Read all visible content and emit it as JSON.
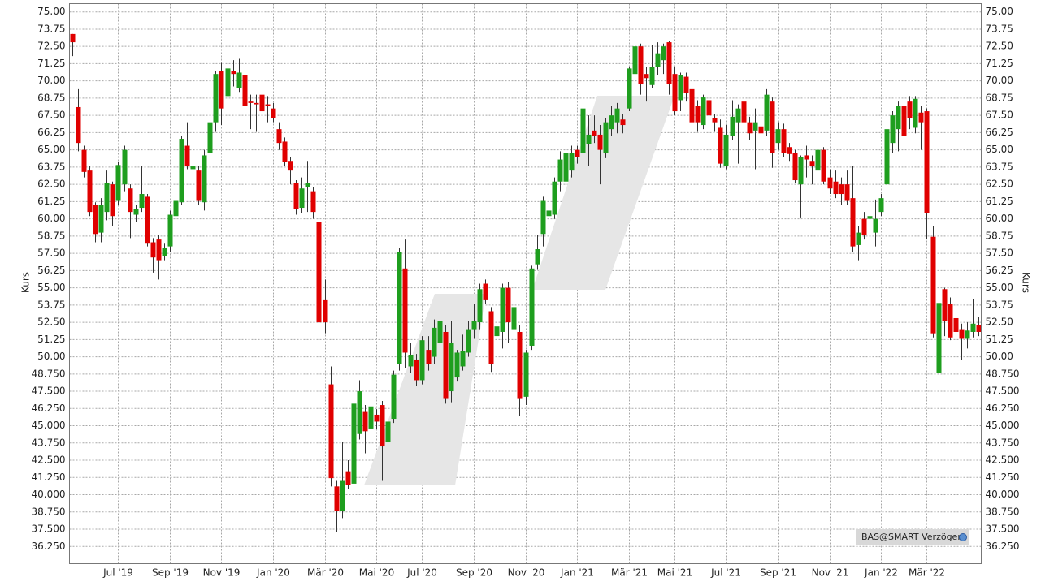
{
  "chart_data": {
    "type": "candlestick",
    "y_label": "Kurs",
    "source": "BAS@SMART Verzögert",
    "up_color": "#1e9e1e",
    "down_color": "#e00000",
    "grid": true,
    "ylim": [
      35.0,
      75.6
    ],
    "yticks": [
      {
        "value": 75,
        "label": "75.00"
      },
      {
        "value": 73.75,
        "label": "73.75"
      },
      {
        "value": 72.5,
        "label": "72.50"
      },
      {
        "value": 71.25,
        "label": "71.25"
      },
      {
        "value": 70,
        "label": "70.00"
      },
      {
        "value": 68.75,
        "label": "68.75"
      },
      {
        "value": 67.5,
        "label": "67.50"
      },
      {
        "value": 66.25,
        "label": "66.25"
      },
      {
        "value": 65,
        "label": "65.00"
      },
      {
        "value": 63.75,
        "label": "63.75"
      },
      {
        "value": 62.5,
        "label": "62.50"
      },
      {
        "value": 61.25,
        "label": "61.25"
      },
      {
        "value": 60,
        "label": "60.00"
      },
      {
        "value": 58.75,
        "label": "58.75"
      },
      {
        "value": 57.5,
        "label": "57.50"
      },
      {
        "value": 56.25,
        "label": "56.25"
      },
      {
        "value": 55,
        "label": "55.00"
      },
      {
        "value": 53.75,
        "label": "53.75"
      },
      {
        "value": 52.5,
        "label": "52.50"
      },
      {
        "value": 51.25,
        "label": "51.25"
      },
      {
        "value": 50,
        "label": "50.00"
      },
      {
        "value": 48.75,
        "label": "48.750"
      },
      {
        "value": 47.5,
        "label": "47.500"
      },
      {
        "value": 46.25,
        "label": "46.250"
      },
      {
        "value": 45,
        "label": "45.000"
      },
      {
        "value": 43.75,
        "label": "43.750"
      },
      {
        "value": 42.5,
        "label": "42.500"
      },
      {
        "value": 41.25,
        "label": "41.250"
      },
      {
        "value": 40,
        "label": "40.000"
      },
      {
        "value": 38.75,
        "label": "38.750"
      },
      {
        "value": 37.5,
        "label": "37.500"
      },
      {
        "value": 36.25,
        "label": "36.250"
      }
    ],
    "categories": [
      null,
      null,
      null,
      null,
      null,
      null,
      null,
      null,
      "Jul '19",
      null,
      null,
      null,
      null,
      null,
      null,
      null,
      null,
      "Sep '19",
      null,
      null,
      null,
      null,
      null,
      null,
      null,
      null,
      "Nov '19",
      null,
      null,
      null,
      null,
      null,
      null,
      null,
      null,
      "Jan '20",
      null,
      null,
      null,
      null,
      null,
      null,
      null,
      null,
      "Mär '20",
      null,
      null,
      null,
      null,
      null,
      null,
      null,
      null,
      "Mai '20",
      null,
      null,
      null,
      null,
      null,
      null,
      null,
      "Jul '20",
      null,
      null,
      null,
      null,
      null,
      null,
      null,
      null,
      "Sep '20",
      null,
      null,
      null,
      null,
      null,
      null,
      null,
      null,
      "Nov '20",
      null,
      null,
      null,
      null,
      null,
      null,
      null,
      null,
      "Jan '21",
      null,
      null,
      null,
      null,
      null,
      null,
      null,
      null,
      "Mär '21",
      null,
      null,
      null,
      null,
      null,
      null,
      null,
      "Mai '21",
      null,
      null,
      null,
      null,
      null,
      null,
      null,
      null,
      "Jul '21",
      null,
      null,
      null,
      null,
      null,
      null,
      null,
      null,
      "Sep '21",
      null,
      null,
      null,
      null,
      null,
      null,
      null,
      null,
      "Nov '21",
      null,
      null,
      null,
      null,
      null,
      null,
      null,
      null,
      "Jan '22",
      null,
      null,
      null,
      null,
      null,
      null,
      null,
      "Mär '22",
      null,
      null,
      null,
      null,
      null,
      null,
      null,
      null,
      null
    ],
    "ohlc": [
      [
        73.4,
        73.4,
        71.8,
        72.8
      ],
      [
        68.1,
        69.4,
        64.9,
        65.5
      ],
      [
        65.0,
        65.3,
        63.0,
        63.4
      ],
      [
        63.5,
        63.8,
        60.2,
        60.5
      ],
      [
        61.0,
        61.2,
        58.3,
        58.9
      ],
      [
        59.0,
        61.5,
        58.3,
        61.0
      ],
      [
        60.5,
        63.5,
        59.9,
        62.6
      ],
      [
        62.5,
        62.7,
        59.5,
        60.2
      ],
      [
        61.3,
        64.1,
        61.0,
        63.9
      ],
      [
        62.5,
        65.3,
        62.0,
        65.0
      ],
      [
        62.2,
        62.5,
        58.6,
        60.5
      ],
      [
        60.3,
        61.0,
        59.8,
        60.7
      ],
      [
        60.8,
        63.8,
        60.5,
        61.8
      ],
      [
        61.6,
        61.8,
        58.0,
        58.2
      ],
      [
        58.3,
        58.6,
        56.1,
        57.2
      ],
      [
        58.5,
        58.8,
        55.6,
        57.0
      ],
      [
        57.3,
        58.2,
        57.0,
        57.9
      ],
      [
        58.0,
        60.6,
        57.6,
        60.3
      ],
      [
        60.2,
        61.5,
        60.0,
        61.3
      ],
      [
        61.2,
        66.0,
        61.0,
        65.8
      ],
      [
        65.3,
        67.0,
        63.6,
        63.8
      ],
      [
        63.6,
        64.0,
        62.2,
        63.8
      ],
      [
        63.5,
        63.8,
        61.0,
        61.3
      ],
      [
        61.2,
        65.0,
        60.6,
        64.6
      ],
      [
        64.8,
        67.5,
        64.5,
        67.0
      ],
      [
        67.0,
        70.7,
        66.3,
        70.5
      ],
      [
        70.7,
        71.3,
        66.8,
        68.0
      ],
      [
        68.9,
        72.1,
        68.5,
        70.9
      ],
      [
        70.7,
        71.5,
        69.6,
        70.5
      ],
      [
        69.5,
        71.6,
        69.2,
        70.6
      ],
      [
        70.4,
        70.8,
        67.8,
        68.2
      ],
      [
        68.5,
        69.0,
        66.5,
        68.4
      ],
      [
        68.4,
        69.0,
        66.3,
        68.3
      ],
      [
        69.0,
        69.3,
        65.9,
        67.8
      ],
      [
        68.3,
        68.9,
        67.0,
        68.2
      ],
      [
        68.0,
        68.4,
        67.0,
        67.3
      ],
      [
        66.5,
        67.0,
        65.0,
        65.5
      ],
      [
        65.6,
        65.9,
        63.8,
        64.1
      ],
      [
        64.2,
        64.5,
        62.5,
        63.5
      ],
      [
        62.6,
        62.8,
        60.3,
        60.7
      ],
      [
        60.8,
        63.0,
        60.4,
        62.2
      ],
      [
        62.3,
        64.2,
        60.5,
        62.6
      ],
      [
        62.0,
        62.3,
        60.0,
        60.5
      ],
      [
        59.8,
        60.4,
        52.3,
        52.5
      ],
      [
        54.1,
        55.6,
        51.7,
        52.5
      ],
      [
        48.0,
        49.3,
        40.6,
        41.2
      ],
      [
        40.6,
        41.0,
        37.3,
        38.8
      ],
      [
        38.8,
        43.8,
        38.3,
        41.0
      ],
      [
        41.7,
        42.5,
        40.4,
        40.7
      ],
      [
        40.8,
        46.9,
        40.5,
        46.6
      ],
      [
        44.4,
        48.3,
        44.0,
        47.5
      ],
      [
        46.0,
        46.5,
        43.0,
        44.6
      ],
      [
        44.8,
        48.7,
        44.5,
        46.4
      ],
      [
        45.8,
        46.2,
        44.8,
        45.3
      ],
      [
        46.5,
        46.8,
        41.0,
        43.5
      ],
      [
        43.8,
        46.4,
        43.5,
        45.3
      ],
      [
        45.5,
        49.0,
        45.2,
        48.7
      ],
      [
        49.5,
        57.9,
        49.0,
        57.6
      ],
      [
        56.4,
        58.5,
        49.2,
        50.3
      ],
      [
        49.3,
        51.0,
        48.8,
        50.1
      ],
      [
        49.8,
        50.2,
        47.9,
        48.3
      ],
      [
        48.3,
        51.5,
        48.0,
        51.2
      ],
      [
        50.5,
        51.5,
        49.0,
        49.5
      ],
      [
        50.0,
        52.7,
        49.5,
        52.1
      ],
      [
        51.0,
        52.8,
        50.5,
        52.6
      ],
      [
        51.8,
        52.3,
        46.6,
        47.0
      ],
      [
        47.5,
        52.6,
        46.7,
        51.0
      ],
      [
        48.5,
        50.5,
        48.2,
        50.3
      ],
      [
        49.3,
        51.6,
        49.0,
        50.4
      ],
      [
        50.3,
        52.6,
        50.0,
        52.0
      ],
      [
        52.0,
        53.8,
        51.3,
        52.6
      ],
      [
        52.5,
        55.3,
        52.0,
        54.9
      ],
      [
        55.3,
        55.6,
        53.8,
        54.1
      ],
      [
        53.3,
        53.6,
        48.9,
        49.5
      ],
      [
        51.5,
        56.9,
        49.8,
        52.2
      ],
      [
        51.8,
        55.3,
        50.6,
        55.0
      ],
      [
        55.0,
        55.4,
        51.0,
        52.5
      ],
      [
        52.0,
        54.0,
        50.8,
        53.6
      ],
      [
        51.8,
        52.3,
        45.7,
        47.0
      ],
      [
        47.1,
        50.5,
        46.5,
        50.3
      ],
      [
        50.8,
        56.6,
        50.5,
        56.4
      ],
      [
        56.7,
        58.8,
        56.3,
        57.8
      ],
      [
        58.9,
        61.6,
        58.0,
        61.3
      ],
      [
        60.2,
        61.0,
        59.5,
        60.6
      ],
      [
        60.3,
        63.0,
        60.0,
        62.7
      ],
      [
        62.7,
        64.9,
        62.0,
        64.3
      ],
      [
        62.7,
        65.0,
        61.3,
        64.8
      ],
      [
        63.5,
        65.3,
        63.0,
        64.8
      ],
      [
        65.0,
        65.3,
        64.0,
        64.5
      ],
      [
        64.8,
        68.6,
        64.5,
        68.0
      ],
      [
        65.4,
        67.5,
        63.8,
        66.1
      ],
      [
        66.4,
        67.5,
        65.5,
        66.0
      ],
      [
        66.1,
        66.8,
        62.5,
        65.0
      ],
      [
        64.8,
        67.3,
        64.4,
        67.0
      ],
      [
        66.5,
        68.2,
        66.0,
        67.5
      ],
      [
        67.0,
        68.4,
        66.2,
        68.0
      ],
      [
        67.2,
        67.6,
        66.2,
        66.8
      ],
      [
        68.0,
        71.0,
        67.8,
        70.9
      ],
      [
        70.5,
        72.7,
        70.0,
        72.5
      ],
      [
        72.5,
        72.7,
        69.0,
        69.8
      ],
      [
        70.5,
        71.0,
        68.5,
        70.2
      ],
      [
        69.7,
        72.6,
        69.5,
        71.0
      ],
      [
        71.0,
        72.8,
        70.4,
        72.0
      ],
      [
        71.5,
        72.7,
        70.5,
        72.5
      ],
      [
        72.8,
        72.9,
        69.0,
        69.8
      ],
      [
        70.5,
        71.0,
        67.5,
        67.8
      ],
      [
        68.6,
        70.6,
        67.8,
        70.4
      ],
      [
        70.3,
        70.6,
        68.5,
        69.1
      ],
      [
        69.4,
        69.6,
        66.5,
        67.0
      ],
      [
        68.2,
        68.6,
        66.3,
        67.0
      ],
      [
        66.8,
        69.0,
        66.5,
        68.8
      ],
      [
        68.6,
        69.0,
        66.5,
        67.5
      ],
      [
        67.3,
        67.6,
        66.3,
        67.0
      ],
      [
        66.6,
        67.2,
        63.7,
        64.0
      ],
      [
        63.8,
        66.8,
        63.6,
        66.1
      ],
      [
        66.0,
        68.6,
        65.7,
        67.4
      ],
      [
        67.0,
        68.3,
        64.0,
        68.0
      ],
      [
        68.5,
        68.8,
        66.4,
        67.0
      ],
      [
        67.0,
        67.4,
        65.7,
        66.2
      ],
      [
        66.4,
        68.0,
        63.6,
        67.0
      ],
      [
        66.7,
        67.1,
        66.0,
        66.2
      ],
      [
        66.4,
        69.4,
        66.0,
        69.0
      ],
      [
        68.5,
        68.8,
        63.7,
        64.8
      ],
      [
        65.5,
        67.0,
        65.0,
        66.5
      ],
      [
        66.5,
        66.9,
        64.5,
        64.8
      ],
      [
        65.2,
        65.5,
        64.2,
        64.7
      ],
      [
        64.8,
        65.0,
        62.6,
        62.8
      ],
      [
        62.5,
        64.6,
        60.1,
        64.5
      ],
      [
        64.6,
        65.3,
        63.0,
        64.3
      ],
      [
        64.2,
        64.6,
        62.5,
        63.8
      ],
      [
        63.5,
        65.2,
        62.8,
        65.0
      ],
      [
        65.0,
        65.2,
        62.5,
        62.7
      ],
      [
        63.0,
        63.6,
        61.8,
        62.2
      ],
      [
        62.7,
        63.5,
        61.5,
        61.8
      ],
      [
        62.5,
        63.0,
        61.0,
        61.8
      ],
      [
        62.5,
        63.5,
        61.0,
        61.3
      ],
      [
        61.5,
        63.8,
        57.6,
        58.0
      ],
      [
        58.1,
        59.5,
        57.0,
        59.0
      ],
      [
        60.0,
        60.5,
        58.5,
        58.8
      ],
      [
        60.0,
        62.0,
        59.5,
        60.2
      ],
      [
        59.0,
        61.4,
        58.0,
        60.0
      ],
      [
        60.5,
        61.8,
        60.2,
        61.5
      ],
      [
        62.5,
        66.5,
        62.2,
        66.5
      ],
      [
        65.5,
        67.8,
        64.8,
        67.5
      ],
      [
        66.5,
        68.5,
        64.9,
        68.2
      ],
      [
        68.2,
        68.8,
        64.8,
        66.0
      ],
      [
        68.5,
        68.9,
        66.5,
        67.3
      ],
      [
        66.6,
        68.9,
        66.2,
        68.7
      ],
      [
        67.7,
        68.2,
        65.0,
        67.0
      ],
      [
        67.8,
        68.0,
        58.5,
        60.4
      ],
      [
        58.7,
        59.5,
        51.4,
        51.7
      ],
      [
        48.8,
        54.5,
        47.1,
        53.9
      ],
      [
        54.9,
        55.0,
        51.5,
        52.6
      ],
      [
        53.8,
        54.3,
        51.2,
        51.4
      ],
      [
        52.8,
        53.3,
        51.6,
        51.8
      ],
      [
        52.0,
        52.4,
        49.8,
        51.3
      ],
      [
        51.3,
        52.5,
        50.6,
        51.9
      ],
      [
        51.8,
        54.2,
        51.4,
        52.4
      ],
      [
        52.3,
        52.9,
        51.5,
        51.8
      ]
    ]
  }
}
